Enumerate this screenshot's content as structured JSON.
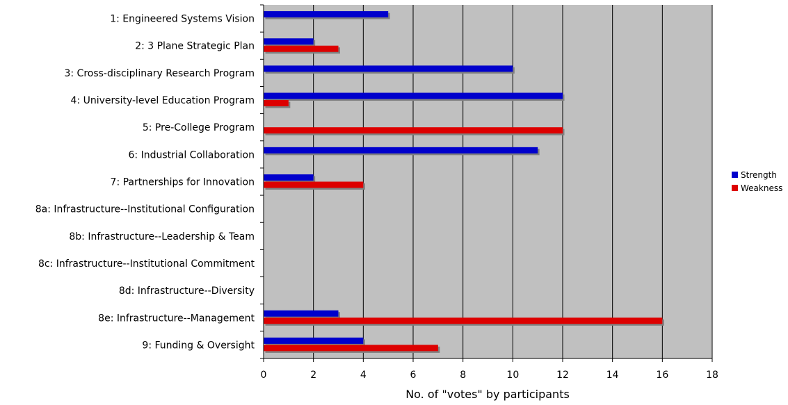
{
  "chart_data": {
    "type": "bar",
    "orientation": "horizontal",
    "title": "",
    "xlabel": "No. of \"votes\" by participants",
    "ylabel": "",
    "xlim": [
      0,
      18
    ],
    "xticks": [
      0,
      2,
      4,
      6,
      8,
      10,
      12,
      14,
      16,
      18
    ],
    "grid": "vertical",
    "legend_position": "right",
    "plot_background": "#c0c0c0",
    "categories": [
      "1: Engineered Systems Vision",
      "2: 3 Plane Strategic Plan",
      "3: Cross-disciplinary Research Program",
      "4: University-level Education Program",
      "5: Pre-College Program",
      "6: Industrial Collaboration",
      "7: Partnerships for Innovation",
      "8a: Infrastructure--Institutional Configuration",
      "8b: Infrastructure--Leadership & Team",
      "8c: Infrastructure--Institutional Commitment",
      "8d: Infrastructure--Diversity",
      "8e: Infrastructure--Management",
      "9: Funding & Oversight"
    ],
    "series": [
      {
        "name": "Strength",
        "color": "#0000cc",
        "values": [
          5,
          2,
          10,
          12,
          0,
          11,
          2,
          0,
          0,
          0,
          0,
          3,
          4
        ]
      },
      {
        "name": "Weakness",
        "color": "#dd0000",
        "values": [
          0,
          3,
          0,
          1,
          12,
          0,
          4,
          0,
          0,
          0,
          0,
          16,
          7
        ]
      }
    ]
  }
}
